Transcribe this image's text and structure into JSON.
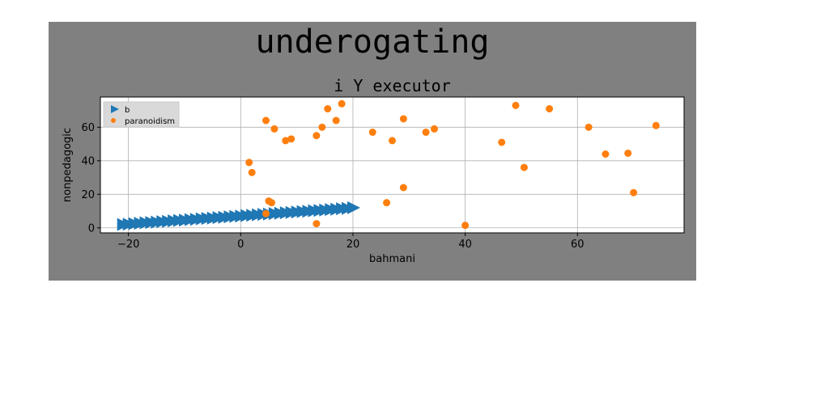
{
  "figure": {
    "suptitle": "underogating",
    "background": "#808080"
  },
  "chart_data": {
    "type": "scatter",
    "title": "i Y executor",
    "xlabel": "bahmani",
    "ylabel": "nonpedagogic",
    "xlim": [
      -25,
      79
    ],
    "ylim": [
      -3,
      78
    ],
    "xticks": [
      -20,
      0,
      20,
      40,
      60
    ],
    "yticks": [
      0,
      20,
      40,
      60
    ],
    "grid": true,
    "legend_placement": "top-left",
    "series": [
      {
        "name": "b",
        "marker": "triangle-right",
        "color": "#1f77b4",
        "x": [
          -21,
          -20,
          -19,
          -18,
          -17,
          -16,
          -15,
          -14,
          -13,
          -12,
          -11,
          -10,
          -9,
          -8,
          -7,
          -6,
          -5,
          -4,
          -3,
          -2,
          -1,
          0,
          1,
          2,
          3,
          4,
          5,
          6,
          7,
          8,
          9,
          10,
          11,
          12,
          13,
          14,
          15,
          16,
          17,
          18,
          19,
          20
        ],
        "y": [
          2.0,
          2.2,
          2.5,
          2.7,
          3.0,
          3.2,
          3.4,
          3.7,
          3.9,
          4.2,
          4.4,
          4.6,
          4.9,
          5.1,
          5.4,
          5.6,
          5.8,
          6.1,
          6.3,
          6.6,
          6.8,
          7.0,
          7.3,
          7.5,
          7.8,
          8.0,
          8.2,
          8.5,
          8.7,
          9.0,
          9.2,
          9.4,
          9.7,
          9.9,
          10.2,
          10.4,
          10.6,
          10.9,
          11.1,
          11.4,
          11.6,
          12.0
        ]
      },
      {
        "name": "paranoidism",
        "marker": "circle",
        "color": "#ff7f0e",
        "x": [
          1.5,
          2,
          4.5,
          5,
          5.5,
          6,
          8,
          9,
          13.5,
          14.5,
          15.5,
          17,
          18,
          13.5,
          4.5,
          23.5,
          26,
          27,
          29,
          29,
          33,
          34.5,
          40,
          46.5,
          49,
          50.5,
          55,
          62,
          65,
          69,
          70,
          74
        ],
        "y": [
          39,
          33,
          64,
          16,
          15,
          59,
          52,
          53,
          55,
          60,
          71,
          64,
          74,
          2.5,
          8.5,
          57,
          15,
          52,
          24,
          65,
          57,
          59,
          1.5,
          51,
          73,
          36,
          71,
          60,
          44,
          44.5,
          21,
          61
        ]
      }
    ]
  }
}
